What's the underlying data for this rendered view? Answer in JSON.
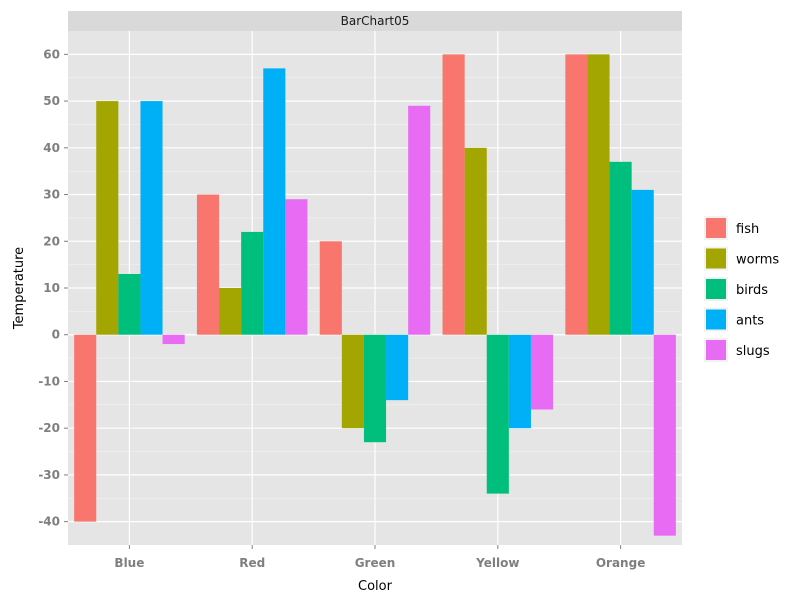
{
  "chart_data": {
    "type": "bar",
    "title": "BarChart05",
    "xlabel": "Color",
    "ylabel": "Temperature",
    "categories": [
      "Blue",
      "Red",
      "Green",
      "Yellow",
      "Orange"
    ],
    "ylim": [
      -45,
      65
    ],
    "yticks": [
      -40,
      -30,
      -20,
      -10,
      0,
      10,
      20,
      30,
      40,
      50,
      60
    ],
    "grid": true,
    "legend_position": "right",
    "series": [
      {
        "name": "fish",
        "color": "#F8766D",
        "values": [
          -40,
          30,
          20,
          60,
          60
        ]
      },
      {
        "name": "worms",
        "color": "#A3A500",
        "values": [
          50,
          10,
          -20,
          40,
          60
        ]
      },
      {
        "name": "birds",
        "color": "#00BF7D",
        "values": [
          13,
          22,
          -23,
          -34,
          37
        ]
      },
      {
        "name": "ants",
        "color": "#00B0F6",
        "values": [
          50,
          57,
          -14,
          -20,
          31
        ]
      },
      {
        "name": "slugs",
        "color": "#E76BF3",
        "values": [
          -2,
          29,
          49,
          -16,
          -43
        ]
      }
    ]
  }
}
